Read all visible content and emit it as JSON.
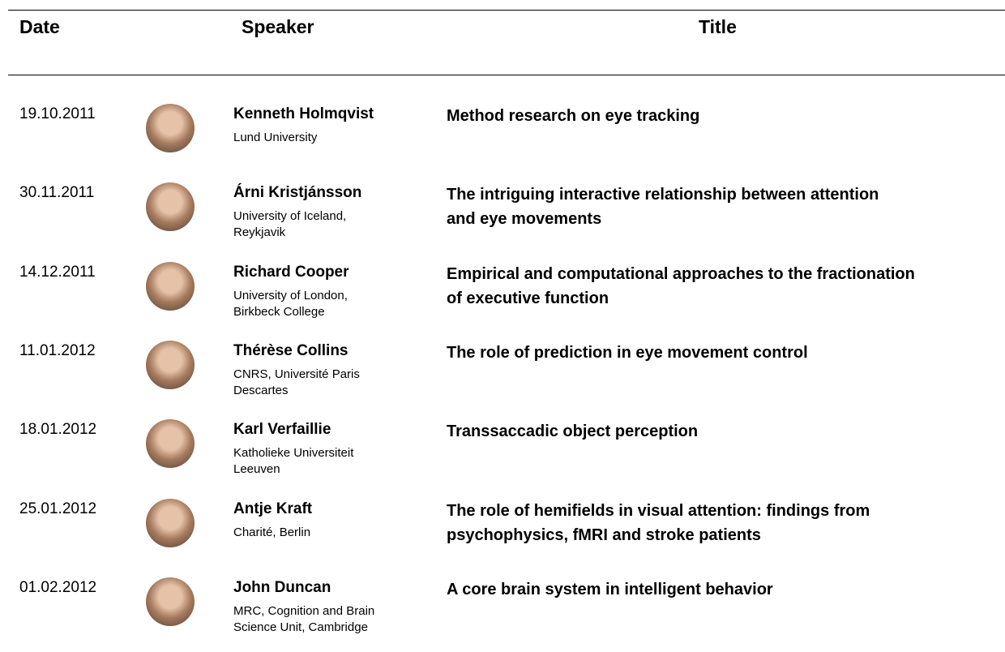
{
  "header": {
    "columns": [
      "Date",
      "Speaker",
      "Title"
    ]
  },
  "rows": [
    {
      "date": "19.10.2011",
      "name": "Kenneth Holmqvist",
      "affiliation": [
        "Lund University"
      ],
      "title": [
        "Method research on eye tracking"
      ]
    },
    {
      "date": "30.11.2011",
      "name": "Árni Kristjánsson",
      "affiliation": [
        "University of Iceland,",
        "Reykjavik"
      ],
      "title": [
        "The intriguing interactive relationship between attention",
        "and eye movements"
      ]
    },
    {
      "date": "14.12.2011",
      "name": "Richard Cooper",
      "affiliation": [
        "University of London,",
        "Birkbeck College"
      ],
      "title": [
        "Empirical and computational approaches to the fractionation",
        "of executive function"
      ]
    },
    {
      "date": "11.01.2012",
      "name": "Thérèse Collins",
      "affiliation": [
        "CNRS, Université Paris",
        "Descartes"
      ],
      "title": [
        "The role of prediction in eye movement control"
      ]
    },
    {
      "date": "18.01.2012",
      "name": "Karl Verfaillie",
      "affiliation": [
        "Katholieke Universiteit",
        "Leeuven"
      ],
      "title": [
        "Transsaccadic object perception"
      ]
    },
    {
      "date": "25.01.2012",
      "name": "Antje Kraft",
      "affiliation": [
        "Charité, Berlin"
      ],
      "title": [
        "The role of hemifields in visual attention: findings from",
        "psychophysics, fMRI and stroke patients"
      ]
    },
    {
      "date": "01.02.2012",
      "name": "John Duncan",
      "affiliation": [
        "MRC, Cognition and Brain",
        "Science Unit, Cambridge"
      ],
      "title": [
        "A core brain system in intelligent behavior"
      ]
    }
  ]
}
